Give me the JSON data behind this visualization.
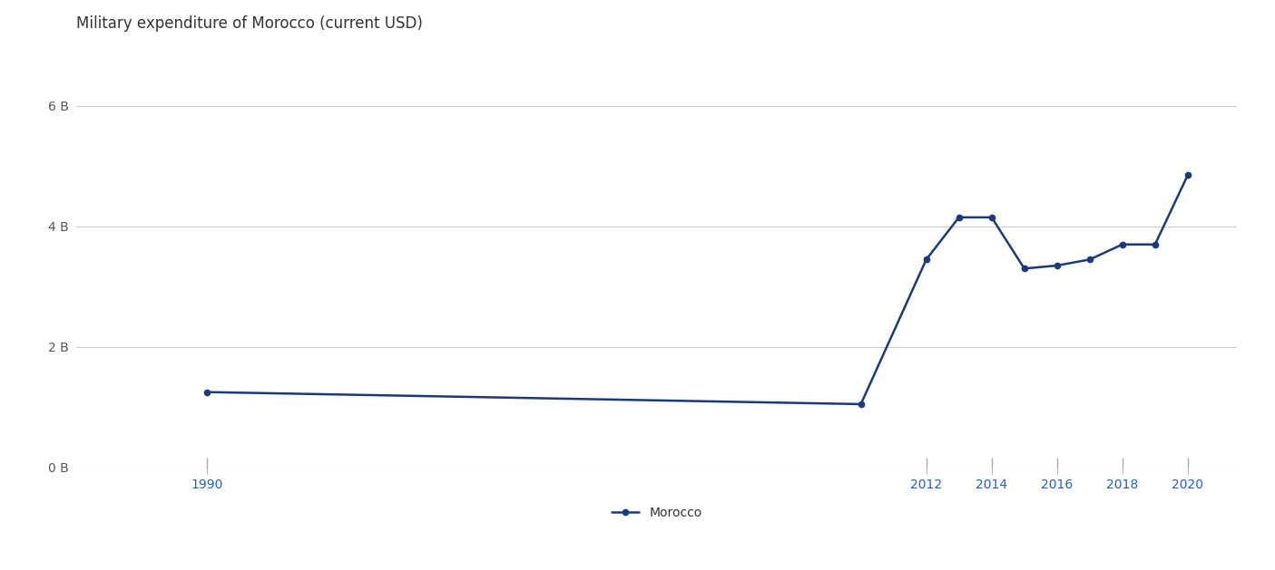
{
  "title": "Military expenditure of Morocco (current USD)",
  "years": [
    1990,
    2010,
    2012,
    2013,
    2014,
    2015,
    2016,
    2017,
    2018,
    2019,
    2020
  ],
  "values": [
    1250000000.0,
    1050000000.0,
    3450000000.0,
    4150000000.0,
    4150000000.0,
    3300000000.0,
    3350000000.0,
    3450000000.0,
    3700000000.0,
    3700000000.0,
    4850000000.0
  ],
  "line_color": "#1a3a7a",
  "marker": "o",
  "marker_size": 4.5,
  "line_width": 1.8,
  "ylim": [
    0,
    7000000000.0
  ],
  "yticks": [
    0,
    2000000000.0,
    4000000000.0,
    6000000000.0
  ],
  "ytick_labels": [
    "0 B",
    "2 B",
    "4 B",
    "6 B"
  ],
  "xticks": [
    1990,
    2012,
    2014,
    2016,
    2018,
    2020
  ],
  "xlim": [
    1986,
    2021.5
  ],
  "xtick_color": "#2060c0",
  "background_color": "#ffffff",
  "grid_color": "#cccccc",
  "legend_label": "Morocco",
  "title_fontsize": 12,
  "tick_fontsize": 10,
  "legend_fontsize": 10
}
